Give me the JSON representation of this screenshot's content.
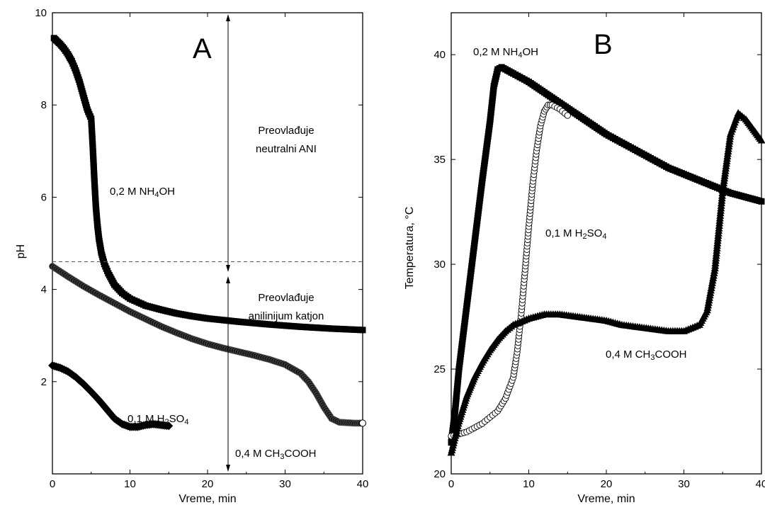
{
  "chart_data": [
    {
      "type": "scatter",
      "panel_label": "A",
      "xlabel": "Vreme, min",
      "ylabel": "pH",
      "xlim": [
        0,
        40
      ],
      "ylim": [
        0,
        10
      ],
      "xticks": [
        "0",
        "10",
        "20",
        "30",
        "40"
      ],
      "yticks": [
        "2",
        "4",
        "6",
        "8",
        "10"
      ],
      "grid": false,
      "threshold_line": {
        "y": 4.6,
        "style": "dashed"
      },
      "region_labels": [
        {
          "lines": [
            "Preovlađuje",
            "neutralni ANI"
          ]
        },
        {
          "lines": [
            "Preovlađuje",
            "anilinijum katjon"
          ]
        }
      ],
      "series": [
        {
          "name": "0,2 M NH4OH",
          "name_main": "0,2 M NH",
          "name_sub": "4",
          "name_tail": "OH",
          "marker": "square-filled",
          "x": [
            0.2,
            0.5,
            1,
            1.5,
            2,
            2.5,
            3,
            3.5,
            4,
            4.5,
            5,
            5.2,
            5.4,
            5.6,
            5.8,
            6,
            6.3,
            6.7,
            7.2,
            8,
            9,
            10,
            12,
            14,
            16,
            18,
            20,
            24,
            28,
            32,
            36,
            40
          ],
          "y": [
            9.45,
            9.4,
            9.32,
            9.22,
            9.1,
            8.95,
            8.75,
            8.5,
            8.2,
            7.9,
            7.7,
            7.1,
            6.4,
            5.8,
            5.4,
            5.1,
            4.8,
            4.55,
            4.35,
            4.1,
            3.92,
            3.8,
            3.65,
            3.56,
            3.48,
            3.42,
            3.37,
            3.3,
            3.24,
            3.19,
            3.15,
            3.12
          ]
        },
        {
          "name": "0,4 M CH3COOH",
          "name_main": "0,4 M CH",
          "name_sub": "3",
          "name_tail": "COOH",
          "marker": "circle-filled",
          "x": [
            0,
            2,
            4,
            6,
            8,
            10,
            12,
            14,
            16,
            18,
            20,
            22,
            24,
            26,
            28,
            30,
            32,
            33,
            34,
            35,
            36,
            37,
            38,
            39,
            40
          ],
          "y": [
            4.5,
            4.28,
            4.07,
            3.88,
            3.7,
            3.52,
            3.36,
            3.2,
            3.06,
            2.93,
            2.82,
            2.73,
            2.65,
            2.57,
            2.48,
            2.37,
            2.18,
            2.0,
            1.75,
            1.45,
            1.2,
            1.12,
            1.11,
            1.1,
            1.1
          ]
        },
        {
          "name": "0,1 M H2SO4",
          "name_main": "0,1 M H",
          "name_sub": "2",
          "name_tail": "SO",
          "name_sub2": "4",
          "marker": "diamond-filled",
          "x": [
            0,
            1,
            2,
            3,
            4,
            5,
            6,
            7,
            8,
            9,
            10,
            11,
            12,
            13,
            14,
            15
          ],
          "y": [
            2.35,
            2.3,
            2.22,
            2.1,
            1.95,
            1.78,
            1.6,
            1.4,
            1.2,
            1.08,
            1.02,
            1.02,
            1.06,
            1.08,
            1.06,
            1.04
          ]
        }
      ]
    },
    {
      "type": "scatter",
      "panel_label": "B",
      "xlabel": "Vreme, min",
      "ylabel": "Temperatura, °C",
      "xlim": [
        0,
        40
      ],
      "ylim": [
        20,
        42
      ],
      "xticks": [
        "0",
        "10",
        "20",
        "30",
        "40"
      ],
      "yticks": [
        "20",
        "25",
        "30",
        "35",
        "40"
      ],
      "grid": false,
      "series": [
        {
          "name": "0,2 M NH4OH",
          "name_main": "0,2 M NH",
          "name_sub": "4",
          "name_tail": "OH",
          "marker": "square-filled",
          "x": [
            0,
            0.5,
            1,
            2,
            3,
            4,
            5,
            5.5,
            6,
            6.5,
            7,
            8,
            10,
            12,
            14,
            16,
            18,
            20,
            22,
            24,
            26,
            28,
            30,
            32,
            34,
            36,
            38,
            40
          ],
          "y": [
            21.5,
            23,
            25,
            28,
            31,
            34,
            36.8,
            38.5,
            39.3,
            39.4,
            39.3,
            39.1,
            38.7,
            38.2,
            37.7,
            37.2,
            36.7,
            36.2,
            35.8,
            35.4,
            35.0,
            34.6,
            34.3,
            34.0,
            33.7,
            33.4,
            33.2,
            33.0
          ]
        },
        {
          "name": "0,1 M H2SO4",
          "name_main": "0,1 M H",
          "name_sub": "2",
          "name_tail": "SO",
          "name_sub2": "4",
          "marker": "circle-open",
          "x": [
            0,
            1,
            2,
            3,
            4,
            5,
            6,
            7,
            8,
            8.5,
            9,
            9.5,
            10,
            10.5,
            11,
            11.5,
            12,
            12.5,
            13,
            14,
            15
          ],
          "y": [
            21.8,
            21.9,
            22.0,
            22.2,
            22.4,
            22.7,
            23.0,
            23.6,
            24.6,
            25.8,
            27.5,
            29.6,
            31.8,
            33.8,
            35.4,
            36.6,
            37.3,
            37.6,
            37.6,
            37.4,
            37.1
          ]
        },
        {
          "name": "0,4 M CH3COOH",
          "name_main": "0,4 M CH",
          "name_sub": "3",
          "name_tail": "COOH",
          "marker": "triangle-filled",
          "x": [
            0,
            1,
            2,
            3,
            4,
            5,
            6,
            7,
            8,
            10,
            12,
            14,
            16,
            18,
            20,
            22,
            24,
            26,
            28,
            30,
            32,
            33,
            34,
            35,
            36,
            37,
            38,
            39,
            40
          ],
          "y": [
            21.0,
            22.5,
            23.7,
            24.6,
            25.3,
            25.9,
            26.4,
            26.8,
            27.1,
            27.4,
            27.6,
            27.6,
            27.5,
            27.4,
            27.3,
            27.1,
            27.0,
            26.9,
            26.8,
            26.8,
            27.1,
            27.8,
            29.8,
            33.5,
            36.2,
            37.2,
            36.9,
            36.4,
            35.9
          ]
        }
      ]
    }
  ]
}
